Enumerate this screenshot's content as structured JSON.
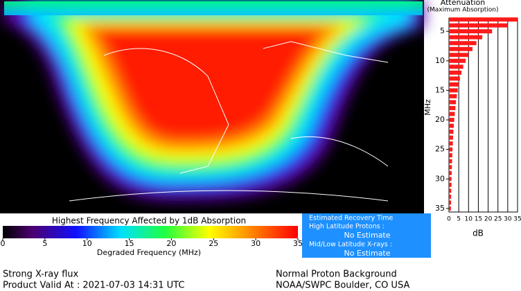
{
  "chart_data": {
    "type": "hbar",
    "title": "Attenuation",
    "subtitle": "(Maximum Absorption)",
    "xlabel": "dB",
    "ylabel": "MHz",
    "color": "#ff1a1a",
    "y": [
      3,
      4,
      5,
      6,
      7,
      8,
      9,
      10,
      11,
      12,
      13,
      14,
      15,
      16,
      17,
      18,
      19,
      20,
      21,
      22,
      23,
      24,
      25,
      26,
      27,
      28,
      29,
      30,
      31,
      32,
      33,
      34,
      35
    ],
    "values": [
      35,
      30,
      22,
      17,
      14,
      12,
      10,
      8.5,
      7.3,
      6.4,
      5.6,
      5,
      4.5,
      4,
      3.6,
      3.3,
      3,
      2.7,
      2.5,
      2.3,
      2.1,
      2,
      1.8,
      1.7,
      1.6,
      1.5,
      1.4,
      1.3,
      1.3,
      1.2,
      1.1,
      1.1,
      1
    ],
    "xlim": [
      0,
      35
    ],
    "xticks": [
      0,
      5,
      10,
      15,
      20,
      25,
      30,
      35
    ],
    "ylim": [
      2.75,
      35.6
    ],
    "yticks": [
      5,
      10,
      15,
      20,
      25,
      30,
      35
    ],
    "grid": true
  },
  "colorbar": {
    "title": "Highest Frequency Affected by 1dB Absorption",
    "label": "Degraded Frequency (MHz)",
    "lim": [
      0,
      35
    ],
    "ticks": [
      0,
      5,
      10,
      15,
      20,
      25,
      30,
      35
    ]
  },
  "recovery": {
    "title": "Estimated Recovery Time",
    "high_label": "High Latitude Protons :",
    "high_value": "No Estimate",
    "low_label": "Mid/Low Latitude X-rays :",
    "low_value": "No Estimate"
  },
  "footer": {
    "flux": "Strong X-ray flux",
    "valid": "Product Valid At : 2021-07-03 14:31 UTC",
    "proton": "Normal Proton Background",
    "source": "NOAA/SWPC Boulder, CO USA"
  }
}
